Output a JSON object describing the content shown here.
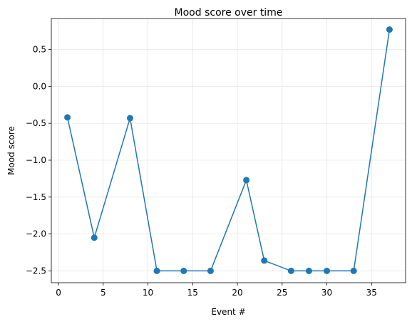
{
  "chart_data": {
    "type": "line",
    "title": "Mood score over time",
    "xlabel": "Event #",
    "ylabel": "Mood score",
    "xlim": [
      -0.8,
      38.8
    ],
    "ylim": [
      -2.66,
      0.92
    ],
    "grid": true,
    "marker": "circle",
    "colors": {
      "line": "#1f77b4",
      "grid": "#e6e6e6",
      "axis": "#000000"
    },
    "x_ticks": [
      0,
      5,
      10,
      15,
      20,
      25,
      30,
      35
    ],
    "x_tick_labels": [
      "0",
      "5",
      "10",
      "15",
      "20",
      "25",
      "30",
      "35"
    ],
    "y_ticks": [
      0.5,
      0.0,
      -0.5,
      -1.0,
      -1.5,
      -2.0,
      -2.5
    ],
    "y_tick_labels": [
      "0.5",
      "0.0",
      "−0.5",
      "−1.0",
      "−1.5",
      "−2.0",
      "−2.5"
    ],
    "series": [
      {
        "x": [
          1,
          4,
          8,
          11,
          14,
          17,
          21,
          23,
          26,
          28,
          30,
          33,
          37
        ],
        "y": [
          -0.42,
          -2.05,
          -0.43,
          -2.5,
          -2.5,
          -2.5,
          -1.27,
          -2.36,
          -2.5,
          -2.5,
          -2.5,
          -2.5,
          0.77
        ]
      }
    ]
  }
}
